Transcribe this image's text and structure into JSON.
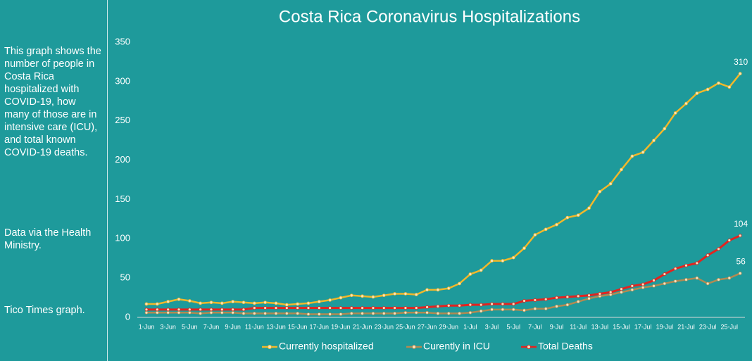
{
  "sidebar": {
    "description": "This graph shows the number of people in Costa Rica hospitalized with COVID-19, how many of those are in intensive care (ICU), and total known COVID-19 deaths.",
    "source": "Data via the Health Ministry.",
    "credit": "Tico Times graph."
  },
  "chart_data": {
    "type": "line",
    "title": "Costa Rica Coronavirus Hospitalizations",
    "categories": [
      "1-Jun",
      null,
      "3-Jun",
      null,
      "5-Jun",
      null,
      "7-Jun",
      null,
      "9-Jun",
      null,
      "11-Jun",
      null,
      "13-Jun",
      null,
      "15-Jun",
      null,
      "17-Jun",
      null,
      "19-Jun",
      null,
      "21-Jun",
      null,
      "23-Jun",
      null,
      "25-Jun",
      null,
      "27-Jun",
      null,
      "29-Jun",
      null,
      "1-Jul",
      null,
      "3-Jul",
      null,
      "5-Jul",
      null,
      "7-Jul",
      null,
      "9-Jul",
      null,
      "11-Jul",
      null,
      "13-Jul",
      null,
      "15-Jul",
      null,
      "17-Jul",
      null,
      "19-Jul",
      null,
      "21-Jul",
      null,
      "23-Jul",
      null,
      "25-Jul",
      null
    ],
    "series": [
      {
        "name": "Currently hospitalized",
        "color": "#f2b82a",
        "values": [
          17,
          17,
          20,
          23,
          21,
          18,
          19,
          18,
          20,
          19,
          18,
          19,
          18,
          16,
          17,
          18,
          20,
          22,
          25,
          28,
          27,
          26,
          28,
          30,
          30,
          29,
          35,
          35,
          37,
          43,
          55,
          60,
          72,
          72,
          76,
          88,
          105,
          112,
          118,
          127,
          130,
          139,
          160,
          170,
          188,
          205,
          210,
          225,
          240,
          260,
          272,
          285,
          290,
          298,
          293,
          310
        ]
      },
      {
        "name": "Curently in ICU",
        "color": "#b18a52",
        "values": [
          6,
          6,
          6,
          6,
          6,
          5,
          6,
          6,
          6,
          5,
          5,
          5,
          5,
          5,
          5,
          4,
          4,
          4,
          4,
          5,
          5,
          5,
          5,
          5,
          6,
          6,
          6,
          5,
          5,
          5,
          6,
          8,
          10,
          10,
          10,
          9,
          11,
          11,
          14,
          16,
          20,
          24,
          27,
          29,
          32,
          35,
          38,
          40,
          43,
          46,
          48,
          50,
          43,
          48,
          50,
          56
        ]
      },
      {
        "name": "Total Deaths",
        "color": "#e3231f",
        "values": [
          10,
          10,
          10,
          10,
          10,
          10,
          10,
          10,
          10,
          10,
          12,
          12,
          12,
          12,
          12,
          12,
          12,
          12,
          12,
          12,
          12,
          12,
          12,
          12,
          12,
          12,
          13,
          14,
          15,
          15,
          16,
          16,
          17,
          17,
          17,
          21,
          22,
          23,
          25,
          26,
          27,
          28,
          30,
          32,
          36,
          40,
          42,
          47,
          55,
          62,
          66,
          69,
          79,
          87,
          98,
          104
        ]
      }
    ],
    "ylim": [
      0,
      350
    ],
    "yticks": [
      0,
      50,
      100,
      150,
      200,
      250,
      300,
      350
    ],
    "grid": false,
    "legend": "bottom"
  }
}
